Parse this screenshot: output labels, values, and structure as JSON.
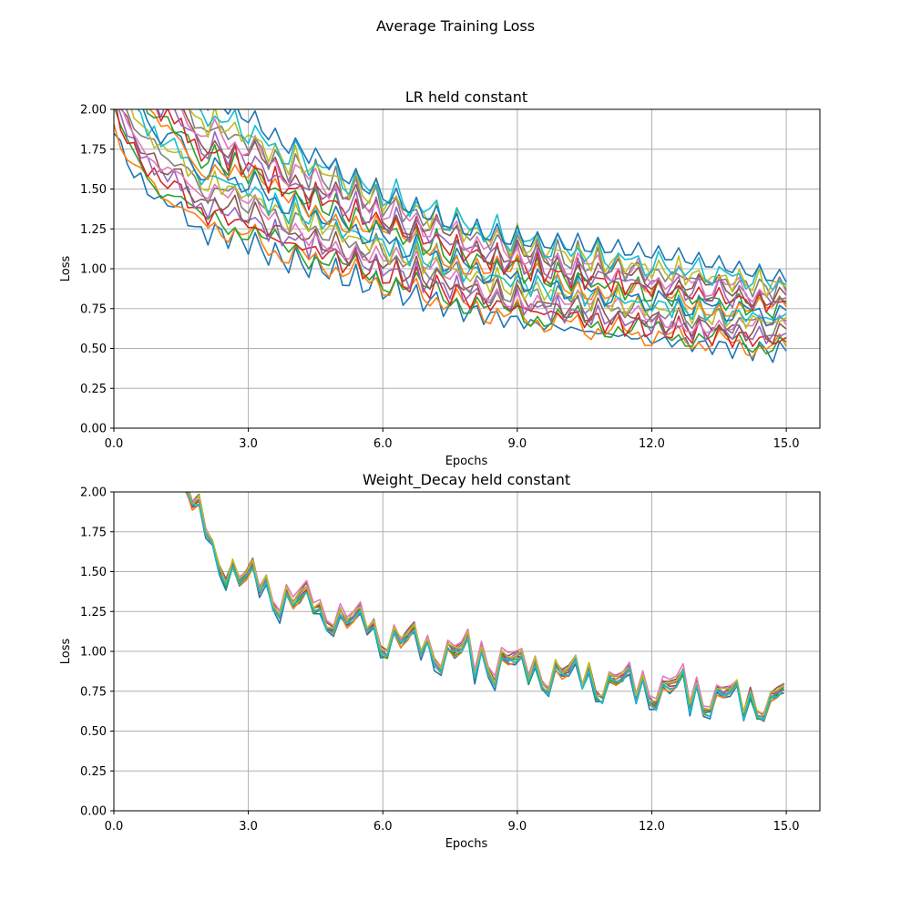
{
  "figure": {
    "suptitle": "Average Training Loss"
  },
  "colors": [
    "#1f77b4",
    "#ff7f0e",
    "#2ca02c",
    "#d62728",
    "#9467bd",
    "#8c564b",
    "#e377c2",
    "#7f7f7f",
    "#bcbd22",
    "#17becf"
  ],
  "chart_data": [
    {
      "type": "line",
      "title": "LR held constant",
      "xlabel": "Epochs",
      "ylabel": "Loss",
      "xlim": [
        0,
        15.75
      ],
      "ylim": [
        0,
        2.0
      ],
      "xticks": [
        "0.0",
        "3.0",
        "6.0",
        "9.0",
        "12.0",
        "15.0"
      ],
      "yticks": [
        "0.00",
        "0.25",
        "0.50",
        "0.75",
        "1.00",
        "1.25",
        "1.50",
        "1.75",
        "2.00"
      ],
      "grid": true,
      "x_start": 0.0,
      "x_step": 0.15,
      "base_curve": [
        2.2,
        2.05,
        1.95,
        1.88,
        1.82,
        1.75,
        1.72,
        1.66,
        1.68,
        1.65,
        1.62,
        1.55,
        1.5,
        1.45,
        1.42,
        1.5,
        1.44,
        1.4,
        1.46,
        1.38,
        1.36,
        1.42,
        1.32,
        1.28,
        1.34,
        1.26,
        1.22,
        1.3,
        1.24,
        1.18,
        1.26,
        1.2,
        1.16,
        1.22,
        1.12,
        1.1,
        1.18,
        1.08,
        1.06,
        1.14,
        1.04,
        1.02,
        1.1,
        1.0,
        0.98,
        1.06,
        0.96,
        0.95,
        1.02,
        0.92,
        0.91,
        0.98,
        0.88,
        0.87,
        0.95,
        0.85,
        0.84,
        0.92,
        0.82,
        0.81,
        0.9,
        0.8,
        0.79,
        0.86,
        0.78,
        0.77,
        0.84,
        0.76,
        0.75,
        0.83,
        0.74,
        0.73,
        0.8,
        0.72,
        0.72,
        0.78,
        0.7,
        0.7,
        0.76,
        0.69,
        0.68,
        0.74,
        0.67,
        0.67,
        0.73,
        0.66,
        0.65,
        0.71,
        0.64,
        0.64,
        0.7,
        0.63,
        0.62,
        0.68,
        0.62,
        0.61,
        0.67,
        0.6,
        0.6,
        0.66,
        0.6
      ],
      "series_offsets": [
        -0.12,
        -0.1,
        -0.08,
        -0.06,
        -0.04,
        -0.02,
        0.0,
        0.02,
        0.04,
        0.06,
        0.08,
        0.1,
        0.12,
        0.14,
        0.16,
        0.18,
        0.2,
        0.22,
        0.24,
        0.26,
        0.28
      ],
      "series_colors_idx": [
        0,
        1,
        2,
        3,
        4,
        5,
        6,
        7,
        8,
        9,
        0,
        1,
        2,
        3,
        4,
        5,
        6,
        7,
        8,
        9,
        0
      ]
    },
    {
      "type": "line",
      "title": "Weight_Decay held constant",
      "xlabel": "Epochs",
      "ylabel": "Loss",
      "xlim": [
        0,
        15.75
      ],
      "ylim": [
        0,
        2.0
      ],
      "xticks": [
        "0.0",
        "3.0",
        "6.0",
        "9.0",
        "12.0",
        "15.0"
      ],
      "yticks": [
        "0.00",
        "0.25",
        "0.50",
        "0.75",
        "1.00",
        "1.25",
        "1.50",
        "1.75",
        "2.00"
      ],
      "grid": true,
      "x_start": 1.6,
      "x_step": 0.15,
      "base_curve": [
        2.05,
        1.92,
        1.95,
        1.75,
        1.68,
        1.52,
        1.42,
        1.55,
        1.45,
        1.48,
        1.55,
        1.38,
        1.45,
        1.28,
        1.22,
        1.38,
        1.3,
        1.35,
        1.4,
        1.26,
        1.28,
        1.15,
        1.12,
        1.26,
        1.18,
        1.22,
        1.28,
        1.12,
        1.18,
        1.0,
        0.98,
        1.15,
        1.06,
        1.1,
        1.16,
        0.98,
        1.08,
        0.92,
        0.88,
        1.04,
        1.0,
        1.02,
        1.1,
        0.84,
        1.02,
        0.86,
        0.8,
        0.98,
        0.95,
        0.96,
        0.98,
        0.82,
        0.94,
        0.78,
        0.75,
        0.92,
        0.86,
        0.88,
        0.96,
        0.78,
        0.9,
        0.72,
        0.7,
        0.85,
        0.82,
        0.84,
        0.9,
        0.7,
        0.84,
        0.68,
        0.66,
        0.8,
        0.78,
        0.8,
        0.88,
        0.64,
        0.8,
        0.62,
        0.62,
        0.76,
        0.74,
        0.76,
        0.8,
        0.6,
        0.74,
        0.6,
        0.6,
        0.72,
        0.74,
        0.78,
        0.56,
        0.72,
        0.56,
        0.56,
        0.66,
        0.7,
        0.75,
        0.54,
        0.7,
        0.5,
        0.52,
        0.64,
        0.62,
        0.66
      ],
      "series_offsets": [
        -0.03,
        -0.02,
        -0.01,
        0.0,
        0.01,
        0.02,
        0.03,
        0.0,
        0.015,
        -0.015
      ],
      "series_colors_idx": [
        0,
        1,
        2,
        3,
        4,
        5,
        6,
        7,
        8,
        9
      ]
    }
  ]
}
